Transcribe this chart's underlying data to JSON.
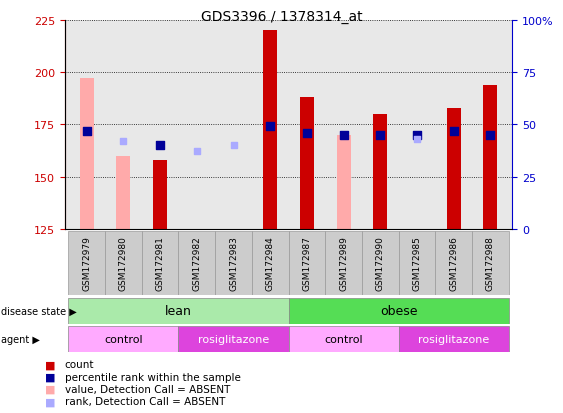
{
  "title": "GDS3396 / 1378314_at",
  "samples": [
    "GSM172979",
    "GSM172980",
    "GSM172981",
    "GSM172982",
    "GSM172983",
    "GSM172984",
    "GSM172987",
    "GSM172989",
    "GSM172990",
    "GSM172985",
    "GSM172986",
    "GSM172988"
  ],
  "count_values": [
    null,
    null,
    158,
    null,
    null,
    220,
    188,
    null,
    180,
    null,
    183,
    194
  ],
  "count_absent": [
    197,
    160,
    null,
    null,
    null,
    null,
    null,
    170,
    null,
    null,
    null,
    null
  ],
  "rank_present": [
    172,
    null,
    165,
    null,
    null,
    174,
    171,
    170,
    170,
    170,
    172,
    170
  ],
  "rank_absent": [
    null,
    167,
    null,
    162,
    165,
    null,
    null,
    null,
    null,
    168,
    null,
    null
  ],
  "ylim": [
    125,
    225
  ],
  "yticks": [
    125,
    150,
    175,
    200,
    225
  ],
  "y2lim": [
    0,
    100
  ],
  "y2ticks": [
    0,
    25,
    50,
    75,
    100
  ],
  "bar_bottom": 125,
  "colors": {
    "count": "#cc0000",
    "count_absent": "#ffaaaa",
    "rank_present": "#000099",
    "rank_absent": "#aaaaff",
    "lean_light": "#aaeaaa",
    "lean_dark": "#55dd55",
    "control": "#ffaaff",
    "rosiglitazone": "#dd44dd",
    "axis_color_left": "#cc0000",
    "axis_color_right": "#0000cc",
    "xticklabel_bg": "#cccccc",
    "plot_bg": "#e8e8e8"
  },
  "legend": [
    {
      "label": "count",
      "color": "#cc0000"
    },
    {
      "label": "percentile rank within the sample",
      "color": "#000099"
    },
    {
      "label": "value, Detection Call = ABSENT",
      "color": "#ffaaaa"
    },
    {
      "label": "rank, Detection Call = ABSENT",
      "color": "#aaaaff"
    }
  ],
  "figsize": [
    5.63,
    4.14
  ],
  "dpi": 100
}
